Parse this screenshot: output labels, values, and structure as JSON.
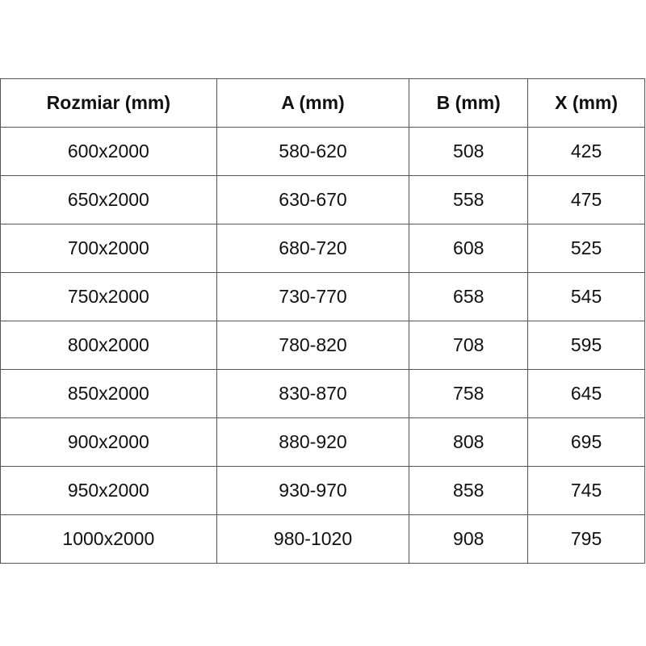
{
  "table": {
    "headers": [
      "Rozmiar (mm)",
      "A (mm)",
      "B (mm)",
      "X (mm)"
    ],
    "rows": [
      [
        "600x2000",
        "580-620",
        "508",
        "425"
      ],
      [
        "650x2000",
        "630-670",
        "558",
        "475"
      ],
      [
        "700x2000",
        "680-720",
        "608",
        "525"
      ],
      [
        "750x2000",
        "730-770",
        "658",
        "545"
      ],
      [
        "800x2000",
        "780-820",
        "708",
        "595"
      ],
      [
        "850x2000",
        "830-870",
        "758",
        "645"
      ],
      [
        "900x2000",
        "880-920",
        "808",
        "695"
      ],
      [
        "950x2000",
        "930-970",
        "858",
        "745"
      ],
      [
        "1000x2000",
        "980-1020",
        "908",
        "795"
      ]
    ]
  }
}
